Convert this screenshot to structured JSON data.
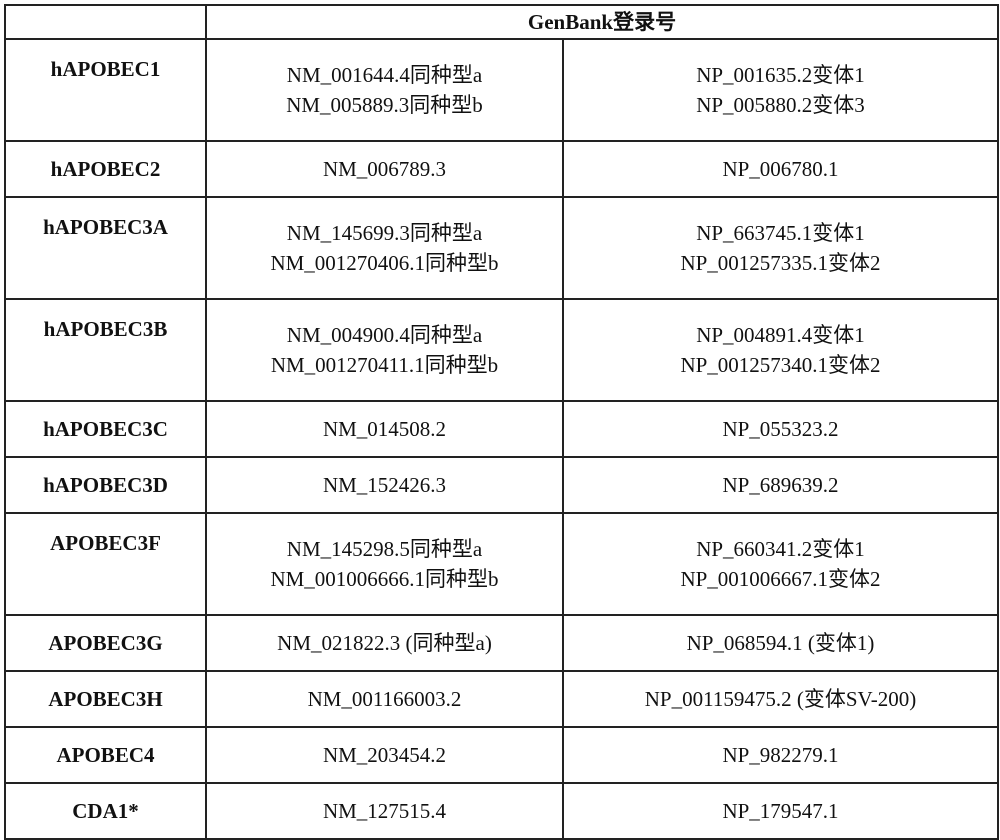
{
  "header": {
    "corner": "",
    "genbank": "GenBank登录号"
  },
  "rows": [
    {
      "name": "hAPOBEC1",
      "nm": [
        "NM_001644.4同种型a",
        "NM_005889.3同种型b"
      ],
      "np": [
        "NP_001635.2变体1",
        "NP_005880.2变体3"
      ]
    },
    {
      "name": "hAPOBEC2",
      "nm": [
        "NM_006789.3"
      ],
      "np": [
        "NP_006780.1"
      ]
    },
    {
      "name": "hAPOBEC3A",
      "nm": [
        "NM_145699.3同种型a",
        "NM_001270406.1同种型b"
      ],
      "np": [
        "NP_663745.1变体1",
        "NP_001257335.1变体2"
      ]
    },
    {
      "name": "hAPOBEC3B",
      "nm": [
        "NM_004900.4同种型a",
        "NM_001270411.1同种型b"
      ],
      "np": [
        "NP_004891.4变体1",
        "NP_001257340.1变体2"
      ]
    },
    {
      "name": "hAPOBEC3C",
      "nm": [
        "NM_014508.2"
      ],
      "np": [
        "NP_055323.2"
      ]
    },
    {
      "name": "hAPOBEC3D",
      "nm": [
        "NM_152426.3"
      ],
      "np": [
        "NP_689639.2"
      ]
    },
    {
      "name": "APOBEC3F",
      "nm": [
        "NM_145298.5同种型a",
        "NM_001006666.1同种型b"
      ],
      "np": [
        "NP_660341.2变体1",
        "NP_001006667.1变体2"
      ]
    },
    {
      "name": "APOBEC3G",
      "nm": [
        "NM_021822.3 (同种型a)"
      ],
      "np": [
        "NP_068594.1 (变体1)"
      ]
    },
    {
      "name": "APOBEC3H",
      "nm": [
        "NM_001166003.2"
      ],
      "np": [
        "NP_001159475.2 (变体SV-200)"
      ]
    },
    {
      "name": "APOBEC4",
      "nm": [
        "NM_203454.2"
      ],
      "np": [
        "NP_982279.1"
      ]
    },
    {
      "name": "CDA1*",
      "nm": [
        "NM_127515.4"
      ],
      "np": [
        "NP_179547.1"
      ]
    }
  ]
}
